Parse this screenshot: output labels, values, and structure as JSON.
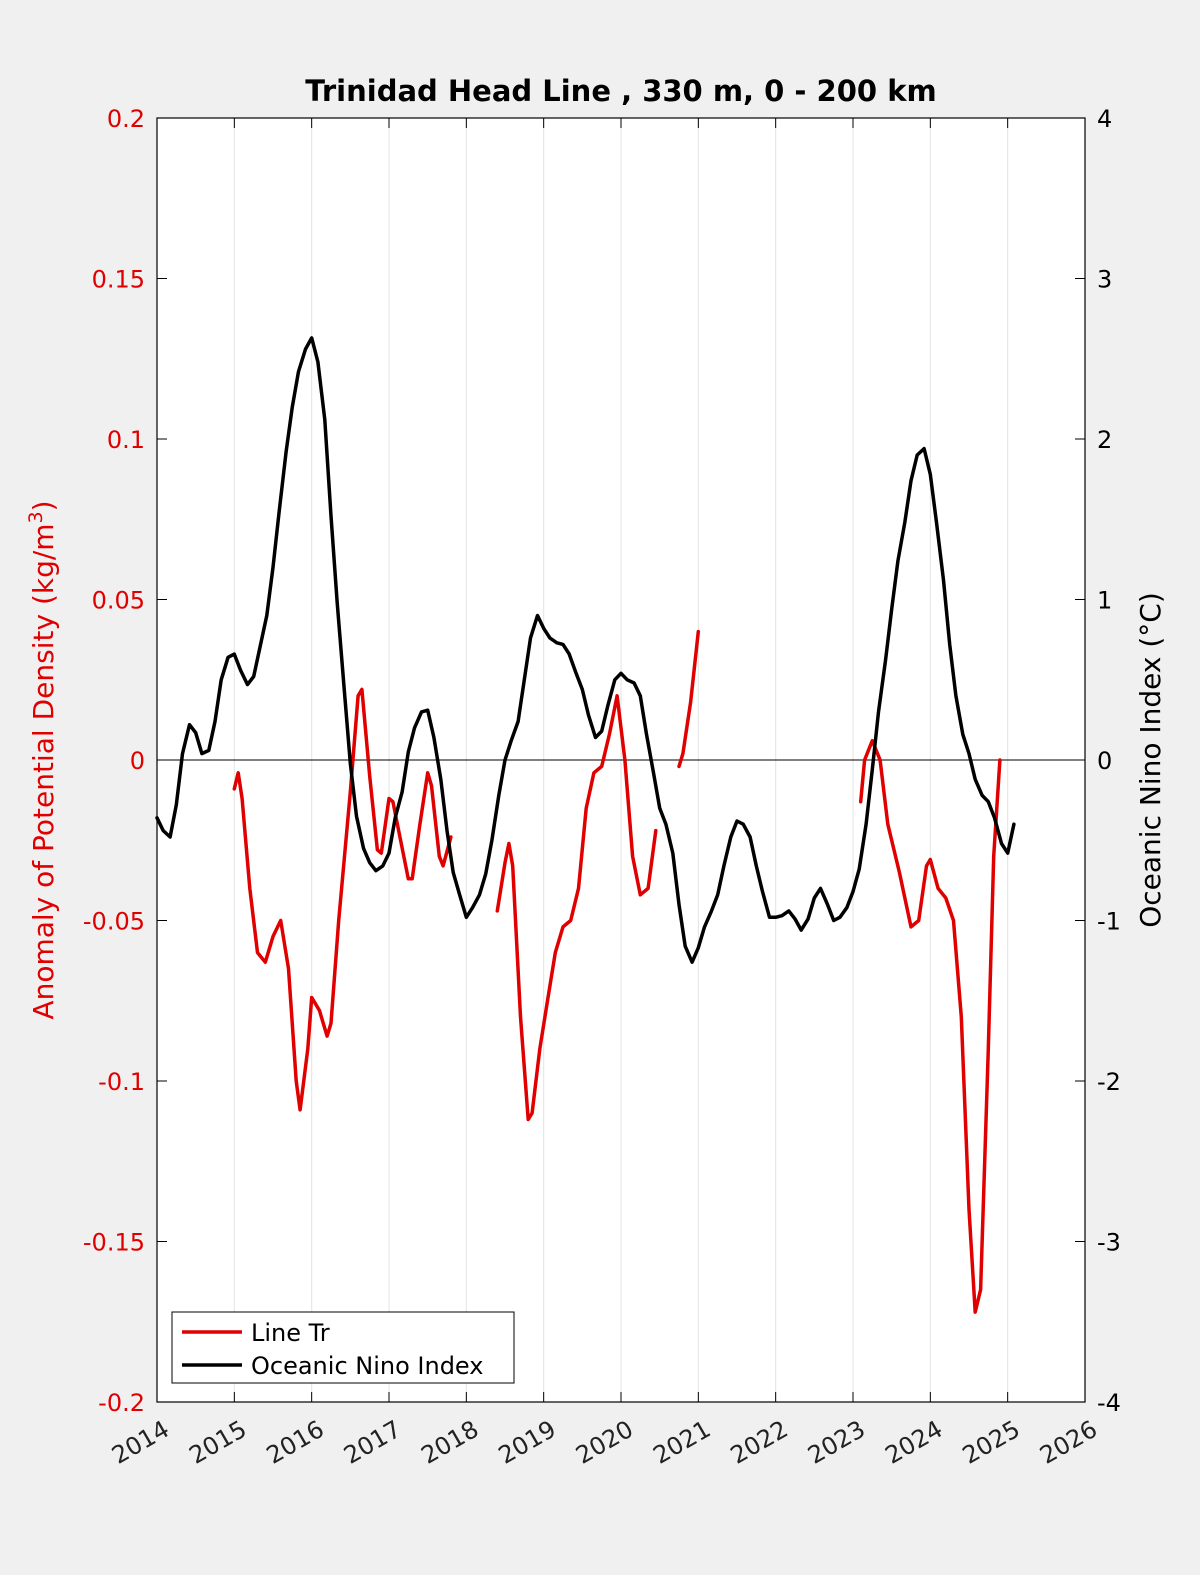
{
  "chart_data": {
    "type": "line",
    "title": "Trinidad Head Line , 330 m, 0 - 200 km",
    "ylabel_left": "Anomaly of Potential Density (kg/m",
    "ylabel_left_sup": "3",
    "ylabel_left_close": ")",
    "ylabel_right": "Oceanic Nino Index (°C)",
    "xlim": [
      2014,
      2026
    ],
    "ylim_left": [
      -0.2,
      0.2
    ],
    "ylim_right": [
      -4,
      4
    ],
    "x_ticks": [
      "2014",
      "2015",
      "2016",
      "2017",
      "2018",
      "2019",
      "2020",
      "2021",
      "2022",
      "2023",
      "2024",
      "2025",
      "2026"
    ],
    "y_left_ticks": [
      "0.2",
      "0.15",
      "0.1",
      "0.05",
      "0",
      "-0.05",
      "-0.1",
      "-0.15",
      "-0.2"
    ],
    "y_right_ticks": [
      "4",
      "3",
      "2",
      "1",
      "0",
      "-1",
      "-2",
      "-3",
      "-4"
    ],
    "grid": "vertical",
    "legend_position": "bottom-left",
    "colors": {
      "line_tr": "#e00000",
      "oni": "#000000"
    },
    "series": [
      {
        "name": "Line Tr",
        "axis": "left",
        "segments": [
          [
            [
              2015.0,
              -0.009
            ],
            [
              2015.05,
              -0.004
            ],
            [
              2015.1,
              -0.012
            ],
            [
              2015.2,
              -0.04
            ],
            [
              2015.3,
              -0.06
            ],
            [
              2015.4,
              -0.063
            ],
            [
              2015.5,
              -0.055
            ],
            [
              2015.6,
              -0.05
            ],
            [
              2015.7,
              -0.065
            ],
            [
              2015.8,
              -0.1
            ],
            [
              2015.85,
              -0.109
            ],
            [
              2015.95,
              -0.09
            ],
            [
              2016.0,
              -0.074
            ],
            [
              2016.1,
              -0.078
            ],
            [
              2016.2,
              -0.086
            ],
            [
              2016.25,
              -0.082
            ],
            [
              2016.35,
              -0.05
            ],
            [
              2016.5,
              -0.01
            ],
            [
              2016.6,
              0.02
            ],
            [
              2016.65,
              0.022
            ],
            [
              2016.75,
              -0.005
            ],
            [
              2016.85,
              -0.028
            ],
            [
              2016.9,
              -0.029
            ],
            [
              2017.0,
              -0.012
            ],
            [
              2017.05,
              -0.013
            ],
            [
              2017.15,
              -0.025
            ],
            [
              2017.25,
              -0.037
            ],
            [
              2017.3,
              -0.037
            ],
            [
              2017.4,
              -0.02
            ],
            [
              2017.5,
              -0.004
            ],
            [
              2017.55,
              -0.008
            ],
            [
              2017.65,
              -0.03
            ],
            [
              2017.7,
              -0.033
            ],
            [
              2017.8,
              -0.024
            ]
          ],
          [
            [
              2018.4,
              -0.047
            ],
            [
              2018.5,
              -0.032
            ],
            [
              2018.55,
              -0.026
            ],
            [
              2018.6,
              -0.033
            ],
            [
              2018.7,
              -0.08
            ],
            [
              2018.8,
              -0.112
            ],
            [
              2018.85,
              -0.11
            ],
            [
              2018.95,
              -0.09
            ],
            [
              2019.05,
              -0.075
            ],
            [
              2019.15,
              -0.06
            ],
            [
              2019.25,
              -0.052
            ],
            [
              2019.35,
              -0.05
            ],
            [
              2019.45,
              -0.04
            ],
            [
              2019.55,
              -0.015
            ],
            [
              2019.65,
              -0.004
            ],
            [
              2019.75,
              -0.002
            ],
            [
              2019.85,
              0.008
            ],
            [
              2019.95,
              0.02
            ],
            [
              2020.05,
              0.0
            ],
            [
              2020.15,
              -0.03
            ],
            [
              2020.25,
              -0.042
            ],
            [
              2020.35,
              -0.04
            ],
            [
              2020.45,
              -0.022
            ]
          ],
          [
            [
              2020.75,
              -0.002
            ],
            [
              2020.8,
              0.002
            ],
            [
              2020.9,
              0.018
            ],
            [
              2021.0,
              0.04
            ]
          ],
          [
            [
              2023.1,
              -0.013
            ],
            [
              2023.15,
              0.0
            ],
            [
              2023.25,
              0.006
            ],
            [
              2023.35,
              0.0
            ],
            [
              2023.45,
              -0.02
            ],
            [
              2023.6,
              -0.035
            ],
            [
              2023.75,
              -0.052
            ],
            [
              2023.85,
              -0.05
            ],
            [
              2023.95,
              -0.033
            ],
            [
              2024.0,
              -0.031
            ],
            [
              2024.1,
              -0.04
            ],
            [
              2024.2,
              -0.043
            ],
            [
              2024.3,
              -0.05
            ],
            [
              2024.4,
              -0.08
            ],
            [
              2024.5,
              -0.14
            ],
            [
              2024.58,
              -0.172
            ],
            [
              2024.65,
              -0.165
            ],
            [
              2024.75,
              -0.09
            ],
            [
              2024.82,
              -0.03
            ],
            [
              2024.9,
              0.0
            ]
          ]
        ]
      },
      {
        "name": "Oceanic Nino Index",
        "axis": "right",
        "segments": [
          [
            [
              2014.0,
              -0.36
            ],
            [
              2014.08,
              -0.44
            ],
            [
              2014.17,
              -0.48
            ],
            [
              2014.25,
              -0.28
            ],
            [
              2014.33,
              0.04
            ],
            [
              2014.42,
              0.22
            ],
            [
              2014.5,
              0.17
            ],
            [
              2014.58,
              0.04
            ],
            [
              2014.67,
              0.06
            ],
            [
              2014.75,
              0.24
            ],
            [
              2014.83,
              0.5
            ],
            [
              2014.92,
              0.64
            ],
            [
              2015.0,
              0.66
            ],
            [
              2015.08,
              0.56
            ],
            [
              2015.17,
              0.47
            ],
            [
              2015.25,
              0.52
            ],
            [
              2015.33,
              0.7
            ],
            [
              2015.42,
              0.9
            ],
            [
              2015.5,
              1.2
            ],
            [
              2015.58,
              1.55
            ],
            [
              2015.67,
              1.92
            ],
            [
              2015.75,
              2.2
            ],
            [
              2015.83,
              2.42
            ],
            [
              2015.92,
              2.56
            ],
            [
              2016.0,
              2.63
            ],
            [
              2016.08,
              2.48
            ],
            [
              2016.17,
              2.12
            ],
            [
              2016.25,
              1.52
            ],
            [
              2016.33,
              0.98
            ],
            [
              2016.42,
              0.45
            ],
            [
              2016.5,
              -0.02
            ],
            [
              2016.58,
              -0.35
            ],
            [
              2016.67,
              -0.55
            ],
            [
              2016.75,
              -0.64
            ],
            [
              2016.83,
              -0.69
            ],
            [
              2016.92,
              -0.66
            ],
            [
              2017.0,
              -0.58
            ],
            [
              2017.08,
              -0.36
            ],
            [
              2017.17,
              -0.2
            ],
            [
              2017.25,
              0.05
            ],
            [
              2017.33,
              0.2
            ],
            [
              2017.42,
              0.3
            ],
            [
              2017.5,
              0.31
            ],
            [
              2017.58,
              0.14
            ],
            [
              2017.67,
              -0.12
            ],
            [
              2017.75,
              -0.44
            ],
            [
              2017.83,
              -0.7
            ],
            [
              2017.92,
              -0.85
            ],
            [
              2018.0,
              -0.98
            ],
            [
              2018.08,
              -0.92
            ],
            [
              2018.17,
              -0.84
            ],
            [
              2018.25,
              -0.71
            ],
            [
              2018.33,
              -0.5
            ],
            [
              2018.42,
              -0.22
            ],
            [
              2018.5,
              0.0
            ],
            [
              2018.58,
              0.12
            ],
            [
              2018.67,
              0.24
            ],
            [
              2018.75,
              0.5
            ],
            [
              2018.83,
              0.76
            ],
            [
              2018.92,
              0.9
            ],
            [
              2019.0,
              0.82
            ],
            [
              2019.08,
              0.76
            ],
            [
              2019.17,
              0.73
            ],
            [
              2019.25,
              0.72
            ],
            [
              2019.33,
              0.66
            ],
            [
              2019.42,
              0.54
            ],
            [
              2019.5,
              0.44
            ],
            [
              2019.58,
              0.28
            ],
            [
              2019.67,
              0.14
            ],
            [
              2019.75,
              0.18
            ],
            [
              2019.83,
              0.34
            ],
            [
              2019.92,
              0.5
            ],
            [
              2020.0,
              0.54
            ],
            [
              2020.08,
              0.5
            ],
            [
              2020.17,
              0.48
            ],
            [
              2020.25,
              0.4
            ],
            [
              2020.33,
              0.16
            ],
            [
              2020.42,
              -0.08
            ],
            [
              2020.5,
              -0.3
            ],
            [
              2020.58,
              -0.4
            ],
            [
              2020.67,
              -0.58
            ],
            [
              2020.75,
              -0.9
            ],
            [
              2020.83,
              -1.16
            ],
            [
              2020.92,
              -1.26
            ],
            [
              2021.0,
              -1.17
            ],
            [
              2021.08,
              -1.04
            ],
            [
              2021.17,
              -0.94
            ],
            [
              2021.25,
              -0.84
            ],
            [
              2021.33,
              -0.66
            ],
            [
              2021.42,
              -0.48
            ],
            [
              2021.5,
              -0.38
            ],
            [
              2021.58,
              -0.4
            ],
            [
              2021.67,
              -0.48
            ],
            [
              2021.75,
              -0.66
            ],
            [
              2021.83,
              -0.82
            ],
            [
              2021.92,
              -0.98
            ],
            [
              2022.0,
              -0.98
            ],
            [
              2022.08,
              -0.97
            ],
            [
              2022.17,
              -0.94
            ],
            [
              2022.25,
              -0.99
            ],
            [
              2022.33,
              -1.06
            ],
            [
              2022.42,
              -0.99
            ],
            [
              2022.5,
              -0.86
            ],
            [
              2022.58,
              -0.8
            ],
            [
              2022.67,
              -0.9
            ],
            [
              2022.75,
              -1.0
            ],
            [
              2022.83,
              -0.98
            ],
            [
              2022.92,
              -0.92
            ],
            [
              2023.0,
              -0.82
            ],
            [
              2023.08,
              -0.68
            ],
            [
              2023.17,
              -0.4
            ],
            [
              2023.25,
              -0.06
            ],
            [
              2023.33,
              0.3
            ],
            [
              2023.42,
              0.62
            ],
            [
              2023.5,
              0.94
            ],
            [
              2023.58,
              1.24
            ],
            [
              2023.67,
              1.48
            ],
            [
              2023.75,
              1.74
            ],
            [
              2023.83,
              1.9
            ],
            [
              2023.92,
              1.94
            ],
            [
              2024.0,
              1.78
            ],
            [
              2024.08,
              1.48
            ],
            [
              2024.17,
              1.12
            ],
            [
              2024.25,
              0.72
            ],
            [
              2024.33,
              0.4
            ],
            [
              2024.42,
              0.16
            ],
            [
              2024.5,
              0.04
            ],
            [
              2024.58,
              -0.12
            ],
            [
              2024.67,
              -0.22
            ],
            [
              2024.75,
              -0.26
            ],
            [
              2024.83,
              -0.36
            ],
            [
              2024.92,
              -0.52
            ],
            [
              2025.0,
              -0.58
            ],
            [
              2025.08,
              -0.4
            ]
          ]
        ]
      }
    ]
  }
}
